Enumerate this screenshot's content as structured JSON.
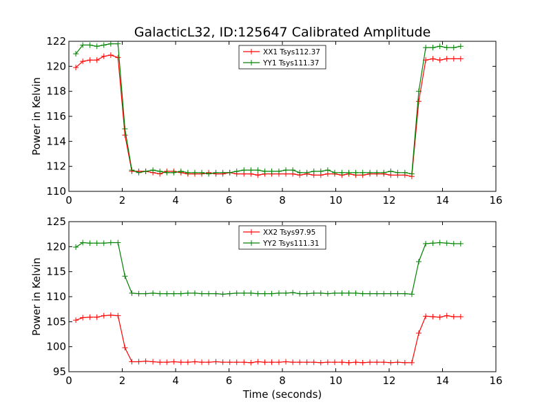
{
  "figure": {
    "title": "GalacticL32, ID:125647 Calibrated Amplitude",
    "xlabel": "Time (seconds)"
  },
  "chart_data": [
    {
      "type": "line",
      "ylabel": "Power in Kelvin",
      "xlim": [
        0,
        16
      ],
      "ylim": [
        110,
        122
      ],
      "xticks": [
        0,
        2,
        4,
        6,
        8,
        10,
        12,
        14,
        16
      ],
      "yticks": [
        110,
        112,
        114,
        116,
        118,
        120,
        122
      ],
      "grid": false,
      "legend_position": "top-center",
      "x": [
        0.26,
        0.52,
        0.79,
        1.05,
        1.31,
        1.57,
        1.84,
        2.1,
        2.36,
        2.62,
        2.88,
        3.15,
        3.41,
        3.67,
        3.93,
        4.2,
        4.46,
        4.72,
        4.98,
        5.24,
        5.51,
        5.77,
        6.03,
        6.29,
        6.56,
        6.82,
        7.08,
        7.34,
        7.6,
        7.87,
        8.13,
        8.39,
        8.65,
        8.92,
        9.18,
        9.44,
        9.7,
        9.96,
        10.23,
        10.49,
        10.75,
        11.01,
        11.28,
        11.54,
        11.8,
        12.06,
        12.32,
        12.59,
        12.85,
        13.11,
        13.37,
        13.64,
        13.9,
        14.16,
        14.42,
        14.68
      ],
      "series": [
        {
          "name": "XX1 Tsys112.37",
          "color": "#ff0000",
          "values": [
            119.9,
            120.4,
            120.5,
            120.5,
            120.8,
            120.9,
            120.7,
            114.5,
            111.6,
            111.6,
            111.6,
            111.5,
            111.4,
            111.6,
            111.6,
            111.5,
            111.4,
            111.4,
            111.4,
            111.5,
            111.4,
            111.4,
            111.5,
            111.4,
            111.4,
            111.4,
            111.3,
            111.4,
            111.4,
            111.4,
            111.4,
            111.4,
            111.3,
            111.4,
            111.3,
            111.3,
            111.4,
            111.4,
            111.3,
            111.4,
            111.3,
            111.3,
            111.4,
            111.4,
            111.4,
            111.3,
            111.3,
            111.3,
            111.2,
            117.2,
            120.5,
            120.6,
            120.5,
            120.6,
            120.6,
            120.6
          ]
        },
        {
          "name": "YY1 Tsys111.37",
          "color": "#008000",
          "values": [
            121.0,
            121.7,
            121.7,
            121.6,
            121.7,
            121.8,
            121.8,
            115.0,
            111.7,
            111.5,
            111.6,
            111.7,
            111.6,
            111.5,
            111.5,
            111.6,
            111.5,
            111.5,
            111.5,
            111.4,
            111.5,
            111.5,
            111.5,
            111.6,
            111.7,
            111.7,
            111.7,
            111.6,
            111.6,
            111.6,
            111.7,
            111.7,
            111.5,
            111.5,
            111.6,
            111.6,
            111.7,
            111.5,
            111.5,
            111.5,
            111.5,
            111.5,
            111.5,
            111.5,
            111.5,
            111.6,
            111.5,
            111.5,
            111.4,
            118.0,
            121.5,
            121.5,
            121.6,
            121.5,
            121.5,
            121.6
          ]
        }
      ]
    },
    {
      "type": "line",
      "ylabel": "Power in Kelvin",
      "xlim": [
        0,
        16
      ],
      "ylim": [
        95,
        125
      ],
      "xticks": [
        0,
        2,
        4,
        6,
        8,
        10,
        12,
        14,
        16
      ],
      "yticks": [
        95,
        100,
        105,
        110,
        115,
        120,
        125
      ],
      "grid": false,
      "legend_position": "top-center",
      "x": [
        0.26,
        0.52,
        0.79,
        1.05,
        1.31,
        1.57,
        1.84,
        2.1,
        2.36,
        2.62,
        2.88,
        3.15,
        3.41,
        3.67,
        3.93,
        4.2,
        4.46,
        4.72,
        4.98,
        5.24,
        5.51,
        5.77,
        6.03,
        6.29,
        6.56,
        6.82,
        7.08,
        7.34,
        7.6,
        7.87,
        8.13,
        8.39,
        8.65,
        8.92,
        9.18,
        9.44,
        9.7,
        9.96,
        10.23,
        10.49,
        10.75,
        11.01,
        11.28,
        11.54,
        11.8,
        12.06,
        12.32,
        12.59,
        12.85,
        13.11,
        13.37,
        13.64,
        13.9,
        14.16,
        14.42,
        14.68
      ],
      "series": [
        {
          "name": "XX2 Tsys97.95",
          "color": "#ff0000",
          "values": [
            105.3,
            105.8,
            105.9,
            105.9,
            106.2,
            106.3,
            106.2,
            99.8,
            97.0,
            97.0,
            97.1,
            97.0,
            96.9,
            96.9,
            97.0,
            96.9,
            96.9,
            97.0,
            96.9,
            96.9,
            97.0,
            96.9,
            96.9,
            96.9,
            96.9,
            96.8,
            97.0,
            96.9,
            96.9,
            96.9,
            97.0,
            96.9,
            96.9,
            96.9,
            96.9,
            96.8,
            96.9,
            96.9,
            96.9,
            96.8,
            96.9,
            96.8,
            96.9,
            96.9,
            96.9,
            96.8,
            96.9,
            96.8,
            96.8,
            102.7,
            106.1,
            106.0,
            105.9,
            106.2,
            106.0,
            106.0
          ]
        },
        {
          "name": "YY2 Tsys111.31",
          "color": "#008000",
          "values": [
            119.9,
            120.8,
            120.7,
            120.7,
            120.7,
            120.8,
            120.8,
            114.1,
            110.7,
            110.6,
            110.6,
            110.7,
            110.6,
            110.6,
            110.6,
            110.6,
            110.7,
            110.7,
            110.6,
            110.6,
            110.6,
            110.5,
            110.6,
            110.7,
            110.7,
            110.7,
            110.6,
            110.6,
            110.6,
            110.7,
            110.7,
            110.8,
            110.6,
            110.6,
            110.7,
            110.7,
            110.6,
            110.7,
            110.7,
            110.7,
            110.7,
            110.6,
            110.6,
            110.6,
            110.6,
            110.6,
            110.6,
            110.6,
            110.5,
            117.0,
            120.6,
            120.7,
            120.8,
            120.7,
            120.6,
            120.6
          ]
        }
      ]
    }
  ]
}
